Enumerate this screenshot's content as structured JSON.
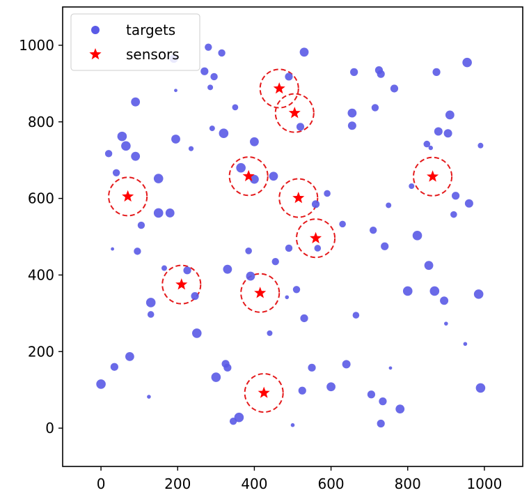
{
  "chart_data": {
    "type": "scatter",
    "xlim": [
      -100,
      1100
    ],
    "ylim": [
      -100,
      1100
    ],
    "x_ticks": [
      0,
      200,
      400,
      600,
      800,
      1000
    ],
    "y_ticks": [
      0,
      200,
      400,
      600,
      800,
      1000
    ],
    "x_tick_labels": [
      "0",
      "200",
      "400",
      "600",
      "800",
      "1000"
    ],
    "y_tick_labels": [
      "0",
      "200",
      "400",
      "600",
      "800",
      "1000"
    ],
    "grid": false,
    "legend": {
      "placement": "top-left",
      "entries": [
        {
          "label": "targets",
          "marker": "circle",
          "color": "#5a5ae6"
        },
        {
          "label": "sensors",
          "marker": "star",
          "color": "#ff0000"
        }
      ]
    },
    "colors": {
      "targets": "#5a5ae6",
      "sensors": "#ff0000",
      "sensor_range": "#e41a1c"
    },
    "sensor_range_radius": 50,
    "series": [
      {
        "name": "targets",
        "points": [
          [
            0,
            115,
            3.4
          ],
          [
            35,
            160,
            2.8
          ],
          [
            75,
            187,
            3.2
          ],
          [
            125,
            82,
            1.4
          ],
          [
            130,
            297,
            2.4
          ],
          [
            130,
            328,
            3.4
          ],
          [
            20,
            717,
            2.6
          ],
          [
            30,
            468,
            1.2
          ],
          [
            40,
            667,
            2.6
          ],
          [
            55,
            762,
            3.4
          ],
          [
            65,
            737,
            3.4
          ],
          [
            90,
            710,
            3.2
          ],
          [
            90,
            852,
            3.2
          ],
          [
            95,
            462,
            2.6
          ],
          [
            105,
            530,
            2.6
          ],
          [
            150,
            652,
            3.4
          ],
          [
            150,
            562,
            3.4
          ],
          [
            165,
            418,
            2.0
          ],
          [
            180,
            562,
            3.2
          ],
          [
            190,
            965,
            3.0
          ],
          [
            195,
            755,
            3.2
          ],
          [
            195,
            882,
            1.2
          ],
          [
            225,
            412,
            2.8
          ],
          [
            235,
            730,
            1.8
          ],
          [
            245,
            345,
            2.8
          ],
          [
            250,
            248,
            3.4
          ],
          [
            270,
            932,
            2.8
          ],
          [
            280,
            995,
            2.6
          ],
          [
            285,
            890,
            2.0
          ],
          [
            290,
            783,
            2.0
          ],
          [
            295,
            918,
            2.6
          ],
          [
            300,
            133,
            3.4
          ],
          [
            315,
            980,
            2.6
          ],
          [
            320,
            770,
            3.4
          ],
          [
            325,
            168,
            2.8
          ],
          [
            330,
            158,
            2.8
          ],
          [
            330,
            415,
            3.2
          ],
          [
            345,
            18,
            2.6
          ],
          [
            350,
            838,
            2.2
          ],
          [
            360,
            28,
            3.4
          ],
          [
            365,
            680,
            3.4
          ],
          [
            385,
            463,
            2.4
          ],
          [
            390,
            397,
            3.2
          ],
          [
            400,
            748,
            3.2
          ],
          [
            400,
            650,
            3.2
          ],
          [
            440,
            248,
            2.0
          ],
          [
            450,
            658,
            3.2
          ],
          [
            455,
            435,
            2.6
          ],
          [
            485,
            342,
            1.4
          ],
          [
            490,
            470,
            2.6
          ],
          [
            490,
            918,
            2.8
          ],
          [
            500,
            8,
            1.4
          ],
          [
            510,
            362,
            2.6
          ],
          [
            520,
            787,
            2.8
          ],
          [
            525,
            98,
            2.8
          ],
          [
            530,
            287,
            2.8
          ],
          [
            530,
            982,
            3.2
          ],
          [
            550,
            158,
            2.8
          ],
          [
            560,
            585,
            2.8
          ],
          [
            565,
            470,
            2.4
          ],
          [
            590,
            613,
            2.4
          ],
          [
            600,
            108,
            3.2
          ],
          [
            630,
            533,
            2.4
          ],
          [
            640,
            167,
            3.0
          ],
          [
            655,
            823,
            3.2
          ],
          [
            655,
            790,
            3.0
          ],
          [
            660,
            930,
            2.8
          ],
          [
            665,
            295,
            2.4
          ],
          [
            705,
            88,
            2.8
          ],
          [
            710,
            517,
            2.6
          ],
          [
            715,
            837,
            2.6
          ],
          [
            725,
            935,
            2.8
          ],
          [
            730,
            925,
            2.8
          ],
          [
            730,
            12,
            2.8
          ],
          [
            735,
            70,
            2.8
          ],
          [
            740,
            475,
            2.8
          ],
          [
            750,
            582,
            2.0
          ],
          [
            755,
            157,
            1.2
          ],
          [
            765,
            887,
            2.8
          ],
          [
            780,
            50,
            3.2
          ],
          [
            800,
            358,
            3.4
          ],
          [
            810,
            632,
            2.0
          ],
          [
            825,
            503,
            3.4
          ],
          [
            850,
            742,
            2.4
          ],
          [
            855,
            425,
            3.2
          ],
          [
            860,
            732,
            1.6
          ],
          [
            870,
            358,
            3.4
          ],
          [
            875,
            930,
            2.8
          ],
          [
            880,
            775,
            3.0
          ],
          [
            895,
            333,
            3.0
          ],
          [
            900,
            273,
            1.4
          ],
          [
            905,
            770,
            3.0
          ],
          [
            910,
            818,
            3.2
          ],
          [
            920,
            558,
            2.4
          ],
          [
            925,
            607,
            2.8
          ],
          [
            950,
            220,
            1.4
          ],
          [
            955,
            955,
            3.4
          ],
          [
            960,
            587,
            3.0
          ],
          [
            985,
            350,
            3.4
          ],
          [
            990,
            105,
            3.4
          ],
          [
            990,
            738,
            2.0
          ]
        ]
      },
      {
        "name": "sensors",
        "points": [
          [
            70,
            605
          ],
          [
            210,
            375
          ],
          [
            385,
            658
          ],
          [
            415,
            353
          ],
          [
            425,
            92
          ],
          [
            465,
            887
          ],
          [
            505,
            823
          ],
          [
            515,
            601
          ],
          [
            560,
            496
          ],
          [
            865,
            657
          ]
        ]
      }
    ]
  }
}
